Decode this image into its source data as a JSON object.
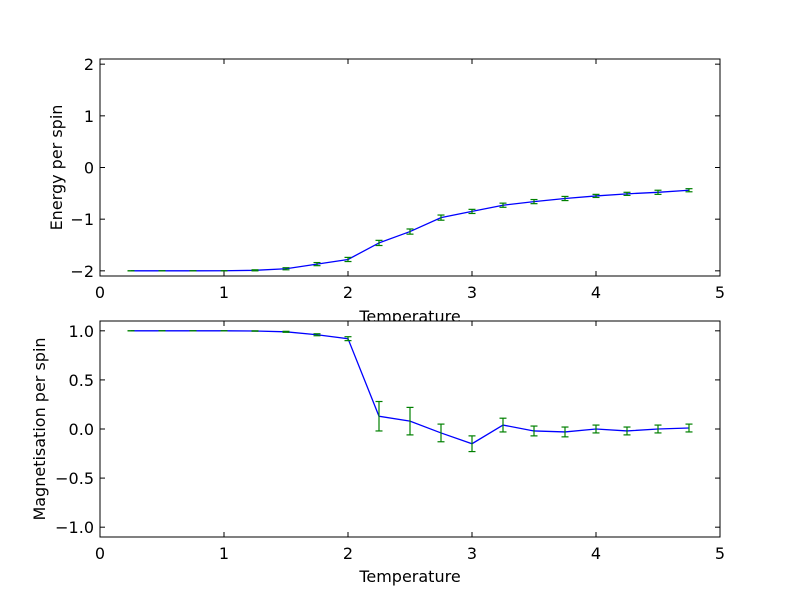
{
  "chart_data": [
    {
      "type": "line",
      "title": "",
      "xlabel": "Temperature",
      "ylabel": "Energy per spin",
      "xlim": [
        0,
        5
      ],
      "ylim": [
        -2.1,
        2.1
      ],
      "xticks": [
        0,
        1,
        2,
        3,
        4,
        5
      ],
      "yticks": [
        -2,
        -1,
        0,
        1,
        2
      ],
      "grid": false,
      "line_color": "#0000ff",
      "errorbar_color": "#008000",
      "x": [
        0.25,
        0.5,
        0.75,
        1.0,
        1.25,
        1.5,
        1.75,
        2.0,
        2.25,
        2.5,
        2.75,
        3.0,
        3.25,
        3.5,
        3.75,
        4.0,
        4.25,
        4.5,
        4.75
      ],
      "y": [
        -2.0,
        -2.0,
        -2.0,
        -1.999,
        -1.99,
        -1.96,
        -1.87,
        -1.78,
        -1.46,
        -1.24,
        -0.97,
        -0.85,
        -0.73,
        -0.66,
        -0.6,
        -0.55,
        -0.51,
        -0.48,
        -0.44
      ],
      "yerr": [
        0.0,
        0.0,
        0.0,
        0.0,
        0.01,
        0.02,
        0.03,
        0.04,
        0.05,
        0.05,
        0.05,
        0.04,
        0.04,
        0.04,
        0.04,
        0.03,
        0.03,
        0.04,
        0.03
      ]
    },
    {
      "type": "line",
      "title": "",
      "xlabel": "Temperature",
      "ylabel": "Magnetisation per spin",
      "xlim": [
        0,
        5
      ],
      "ylim": [
        -1.1,
        1.1
      ],
      "xticks": [
        0,
        1,
        2,
        3,
        4,
        5
      ],
      "yticks": [
        -1.0,
        -0.5,
        0.0,
        0.5,
        1.0
      ],
      "grid": false,
      "line_color": "#0000ff",
      "errorbar_color": "#008000",
      "x": [
        0.25,
        0.5,
        0.75,
        1.0,
        1.25,
        1.5,
        1.75,
        2.0,
        2.25,
        2.5,
        2.75,
        3.0,
        3.25,
        3.5,
        3.75,
        4.0,
        4.25,
        4.5,
        4.75
      ],
      "y": [
        1.0,
        1.0,
        1.0,
        1.0,
        0.998,
        0.99,
        0.96,
        0.92,
        0.13,
        0.08,
        -0.04,
        -0.15,
        0.04,
        -0.02,
        -0.03,
        0.0,
        -0.02,
        0.0,
        0.01
      ],
      "yerr": [
        0.0,
        0.0,
        0.0,
        0.0,
        0.002,
        0.005,
        0.01,
        0.02,
        0.15,
        0.14,
        0.09,
        0.08,
        0.07,
        0.05,
        0.05,
        0.04,
        0.04,
        0.04,
        0.04
      ]
    }
  ]
}
